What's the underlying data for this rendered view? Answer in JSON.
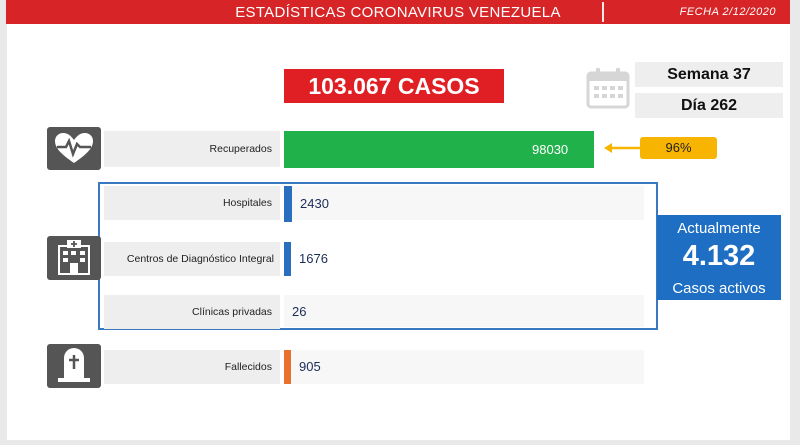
{
  "header": {
    "title": "ESTADÍSTICAS CORONAVIRUS VENEZUELA",
    "date": "FECHA 2/12/2020"
  },
  "summary": {
    "total_cases": "103.067 CASOS",
    "week": "Semana 37",
    "day": "Día 262"
  },
  "active": {
    "top_label": "Actualmente",
    "value": "4.132",
    "bottom_label": "Casos activos"
  },
  "recovered_percent": "96%",
  "colors": {
    "header": "#d72426",
    "total": "#e01f24",
    "recovered_bar": "#21b14a",
    "active_bar": "#2a6ebf",
    "deaths_bar": "#e8722d",
    "frame": "#3a79c0",
    "badge": "#f7b400"
  },
  "icons": [
    "heartbeat-icon",
    "hospital-icon",
    "grave-icon",
    "calendar-icon"
  ],
  "chart_data": {
    "type": "bar",
    "orientation": "horizontal",
    "categories": [
      "Recuperados",
      "Hospitales",
      "Centros de Diagnóstico Integral",
      "Clínicas privadas",
      "Fallecidos"
    ],
    "values": [
      98030,
      2430,
      1676,
      26,
      905
    ],
    "value_labels": [
      "98030",
      "2430",
      "1676",
      "26",
      "905"
    ],
    "bar_colors": [
      "#21b14a",
      "#2a6ebf",
      "#2a6ebf",
      "#2a6ebf",
      "#e8722d"
    ],
    "xlim": [
      0,
      100000
    ],
    "grid": false,
    "legend": "none"
  }
}
